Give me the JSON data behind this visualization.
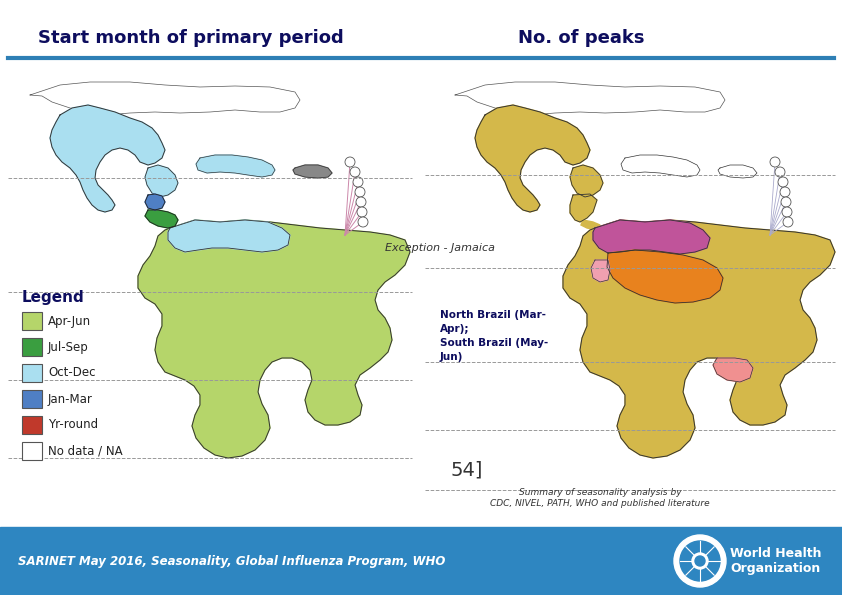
{
  "title_left": "Start month of primary period",
  "title_right": "No. of peaks",
  "title_color": "#0d0d5e",
  "title_fontsize": 13,
  "divider_color": "#2e7fb5",
  "background_color": "#ffffff",
  "footer_bg_color": "#2e86c1",
  "footer_text": "SARINET May 2016, Seasonality, Global Influenza Program, WHO",
  "footer_text_color": "#ffffff",
  "footer_fontsize": 8.5,
  "exception_text": "Exception - Jamaica",
  "north_brazil_text": "North Brazil (Mar-\nApr);\nSouth Brazil (May-\nJun)",
  "page_num_text": "54]",
  "summary_text": "Summary of seasonality analysis by\nCDC, NIVEL, PATH, WHO and published literature",
  "legend_title": "Legend",
  "legend_items": [
    {
      "label": "Apr-Jun",
      "color": "#b5d56a"
    },
    {
      "label": "Jul-Sep",
      "color": "#3a9e40"
    },
    {
      "label": "Oct-Dec",
      "color": "#aadff0"
    },
    {
      "label": "Jan-Mar",
      "color": "#4f7fc4"
    },
    {
      "label": "Yr-round",
      "color": "#c0392b"
    },
    {
      "label": "No data / NA",
      "color": "#ffffff"
    }
  ],
  "who_text": "World Health\nOrganization",
  "dashed_color": "#999999",
  "dashed_lw": 0.7
}
